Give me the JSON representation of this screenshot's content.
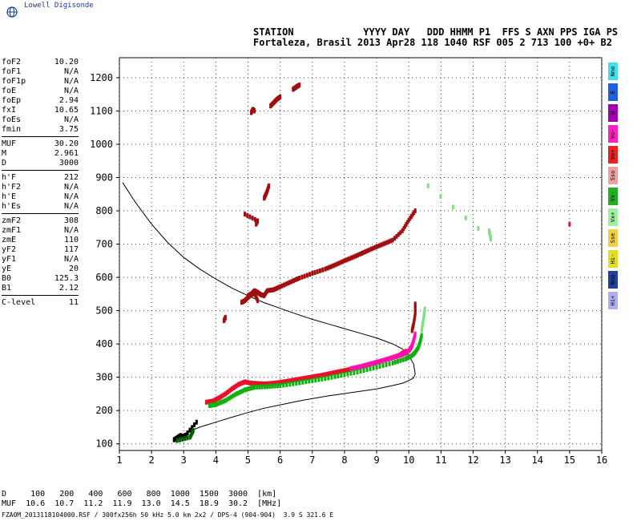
{
  "brand": {
    "text": "Lowell Digisonde"
  },
  "header": {
    "line1": "STATION            YYYY DAY   DDD HHMM P1  FFS S AXN PPS IGA PS",
    "line2": "Fortaleza, Brasil 2013 Apr28 118 1040 RSF 005 2 713 100 +0+ B2"
  },
  "params": [
    {
      "name": "foF2",
      "value": "10.20"
    },
    {
      "name": "foF1",
      "value": "N/A"
    },
    {
      "name": "foF1p",
      "value": "N/A"
    },
    {
      "name": "foE",
      "value": "N/A"
    },
    {
      "name": "foEp",
      "value": "2.94"
    },
    {
      "name": "fxI",
      "value": "10.65"
    },
    {
      "name": "foEs",
      "value": "N/A"
    },
    {
      "name": "fmin",
      "value": "3.75"
    },
    {
      "sep": true
    },
    {
      "name": "MUF",
      "value": "30.20"
    },
    {
      "name": "M",
      "value": "2.961"
    },
    {
      "name": "D",
      "value": "3000"
    },
    {
      "sep": true
    },
    {
      "name": "h'F",
      "value": "212"
    },
    {
      "name": "h'F2",
      "value": "N/A"
    },
    {
      "name": "h'E",
      "value": "N/A"
    },
    {
      "name": "h'Es",
      "value": "N/A"
    },
    {
      "sep": true
    },
    {
      "name": "zmF2",
      "value": "308"
    },
    {
      "name": "zmF1",
      "value": "N/A"
    },
    {
      "name": "zmE",
      "value": "110"
    },
    {
      "name": "yF2",
      "value": "117"
    },
    {
      "name": "yF1",
      "value": "N/A"
    },
    {
      "name": "yE",
      "value": "20"
    },
    {
      "name": "B0",
      "value": "125.3"
    },
    {
      "name": "B1",
      "value": "2.12"
    },
    {
      "sep": true
    },
    {
      "name": "C-level",
      "value": "11"
    }
  ],
  "legend": [
    {
      "label": "Nno",
      "color": "#40e0e8"
    },
    {
      "label": "E",
      "color": "#2060e0"
    },
    {
      "label": "W",
      "color": "#a000b0"
    },
    {
      "label": "Vo-",
      "color": "#ff20c0"
    },
    {
      "label": "Vo+",
      "color": "#f02020"
    },
    {
      "label": "Sso",
      "color": "#f0a0a0"
    },
    {
      "label": "Vx-",
      "color": "#20b020"
    },
    {
      "label": "Vx+",
      "color": "#a0f0a0"
    },
    {
      "label": "Sse",
      "color": "#f0d040"
    },
    {
      "label": "Hi-",
      "color": "#e0e020"
    },
    {
      "label": "Nno",
      "color": "#2040a0"
    },
    {
      "label": "Hi+",
      "color": "#b0b0f0"
    }
  ],
  "muf_table": {
    "d_line": "D     100   200   400   600   800  1000  1500  3000  [km]",
    "muf_line": "MUF  10.6  10.7  11.2  11.9  13.0  14.5  18.9  30.2  [MHz]"
  },
  "footer": {
    "text": "FZA0M_2013118104000.RSF / 300fx256h 50 kHz 5.0 km 2x2 / DPS-4 (904-904)  3.9 S 321.6 E"
  },
  "chart_data": {
    "type": "scatter",
    "xlim": [
      1,
      16
    ],
    "ylim": [
      80,
      1260
    ],
    "xticks": [
      1,
      2,
      3,
      4,
      5,
      6,
      7,
      8,
      9,
      10,
      11,
      12,
      13,
      14,
      15,
      16
    ],
    "yticks": [
      100,
      200,
      300,
      400,
      500,
      600,
      700,
      800,
      900,
      1000,
      1100,
      1200
    ],
    "grid": true,
    "colors": {
      "o": "#e8102a",
      "om": "#ff10b0",
      "x": "#10b010",
      "xl": "#80e080",
      "d": "#a01010",
      "k": "#000000",
      "kg": "#006000"
    },
    "traces": [
      {
        "name": "",
        "color": "o",
        "x": [
          3.7,
          3.9,
          4.1,
          4.3,
          4.5,
          4.7,
          4.9,
          5.1,
          5.3,
          5.5,
          5.7,
          5.9,
          6.1,
          6.4,
          6.7,
          7.0,
          7.3,
          7.6,
          7.9,
          8.2,
          8.5,
          8.8,
          9.1,
          9.4,
          9.7,
          9.9
        ],
        "y": [
          225,
          228,
          238,
          250,
          265,
          278,
          286,
          282,
          281,
          280,
          281,
          283,
          286,
          291,
          296,
          301,
          306,
          312,
          318,
          324,
          331,
          339,
          347,
          356,
          366,
          378
        ]
      },
      {
        "name": "",
        "color": "om",
        "x": [
          8.2,
          8.5,
          8.8,
          9.1,
          9.4,
          9.6,
          9.8,
          9.95,
          10.05,
          10.1,
          10.15,
          10.2
        ],
        "y": [
          326,
          332,
          340,
          348,
          356,
          362,
          368,
          375,
          385,
          395,
          410,
          430
        ]
      },
      {
        "name": "",
        "color": "x",
        "x": [
          3.8,
          4.0,
          4.3,
          4.6,
          4.9,
          5.2,
          5.6,
          6.0,
          6.5,
          7.0,
          7.5,
          8.0,
          8.5,
          9.0,
          9.5,
          9.9,
          10.1,
          10.2,
          10.3,
          10.35,
          10.4
        ],
        "y": [
          215,
          218,
          230,
          248,
          262,
          270,
          272,
          275,
          282,
          290,
          298,
          308,
          318,
          330,
          343,
          355,
          365,
          375,
          390,
          405,
          425
        ]
      },
      {
        "name": "",
        "color": "xl",
        "x": [
          10.4,
          10.45,
          10.5
        ],
        "y": [
          440,
          470,
          505
        ]
      },
      {
        "name": "",
        "color": "d",
        "x": [
          5.0,
          5.1,
          5.2,
          5.3,
          5.4,
          5.5,
          5.6,
          5.8,
          6.0,
          6.3,
          6.6,
          7.0,
          7.4,
          7.7,
          8.0,
          8.3,
          8.6,
          8.9,
          9.2,
          9.5,
          9.8,
          10.0,
          10.2
        ],
        "y": [
          545,
          550,
          560,
          555,
          548,
          545,
          560,
          563,
          572,
          585,
          598,
          612,
          625,
          637,
          650,
          662,
          675,
          688,
          700,
          712,
          740,
          772,
          800
        ]
      },
      {
        "name": "",
        "color": "d",
        "x": [
          4.8,
          4.9,
          5.0,
          5.1,
          5.2,
          5.3
        ],
        "y": [
          525,
          530,
          540,
          548,
          553,
          530
        ]
      },
      {
        "name": "",
        "color": "d",
        "x": [
          5.5,
          5.55,
          5.6,
          5.65
        ],
        "y": [
          838,
          848,
          860,
          875
        ]
      },
      {
        "name": "",
        "color": "d",
        "x": [
          5.1,
          5.15,
          5.2
        ],
        "y": [
          1095,
          1105,
          1100
        ]
      },
      {
        "name": "",
        "color": "d",
        "x": [
          5.7,
          5.8,
          5.9,
          6.0
        ],
        "y": [
          1115,
          1125,
          1135,
          1142
        ]
      },
      {
        "name": "",
        "color": "d",
        "x": [
          6.4,
          6.5,
          6.6
        ],
        "y": [
          1165,
          1172,
          1178
        ]
      },
      {
        "name": "",
        "color": "d",
        "x": [
          4.25,
          4.3
        ],
        "y": [
          470,
          480
        ]
      },
      {
        "name": "",
        "color": "d",
        "x": [
          5.25,
          5.3,
          4.9
        ],
        "y": [
          760,
          770,
          790
        ]
      },
      {
        "name": "",
        "color": "d",
        "x": [
          10.1,
          10.15,
          10.2,
          10.2
        ],
        "y": [
          440,
          460,
          490,
          520
        ]
      },
      {
        "name": "",
        "color": "k",
        "x": [
          2.7,
          2.8,
          2.9,
          3.0,
          3.05,
          3.4
        ],
        "y": [
          112,
          118,
          125,
          120,
          125,
          165
        ]
      },
      {
        "name": "",
        "color": "kg",
        "x": [
          2.8,
          3.2,
          3.3
        ],
        "y": [
          110,
          120,
          140
        ]
      },
      {
        "name": "",
        "color": "xl",
        "x": [
          12.5,
          12.55,
          10.6
        ],
        "y": [
          740,
          715,
          875
        ]
      },
      {
        "name": "",
        "color": "o",
        "x": [
          15.0
        ],
        "y": [
          760
        ]
      }
    ],
    "profile": {
      "name": "",
      "x": [
        1.1,
        1.5,
        2.0,
        2.5,
        3.0,
        3.5,
        4.0,
        4.5,
        5.0,
        5.5,
        6.0,
        6.5,
        7.0,
        7.5,
        8.0,
        8.5,
        9.0,
        9.5,
        9.8,
        10.0,
        10.15,
        10.2,
        10.15,
        10.0,
        9.8,
        9.5,
        9.0,
        8.5,
        8.0,
        7.5,
        7.0,
        6.5,
        6.0,
        5.5,
        5.0,
        4.5,
        4.0,
        3.5,
        3.0,
        2.8
      ],
      "y": [
        885,
        825,
        760,
        705,
        660,
        625,
        595,
        568,
        545,
        524,
        507,
        490,
        474,
        460,
        446,
        432,
        418,
        400,
        385,
        365,
        340,
        310,
        298,
        290,
        282,
        275,
        265,
        258,
        251,
        244,
        236,
        227,
        217,
        207,
        194,
        180,
        165,
        150,
        130,
        115
      ]
    }
  }
}
